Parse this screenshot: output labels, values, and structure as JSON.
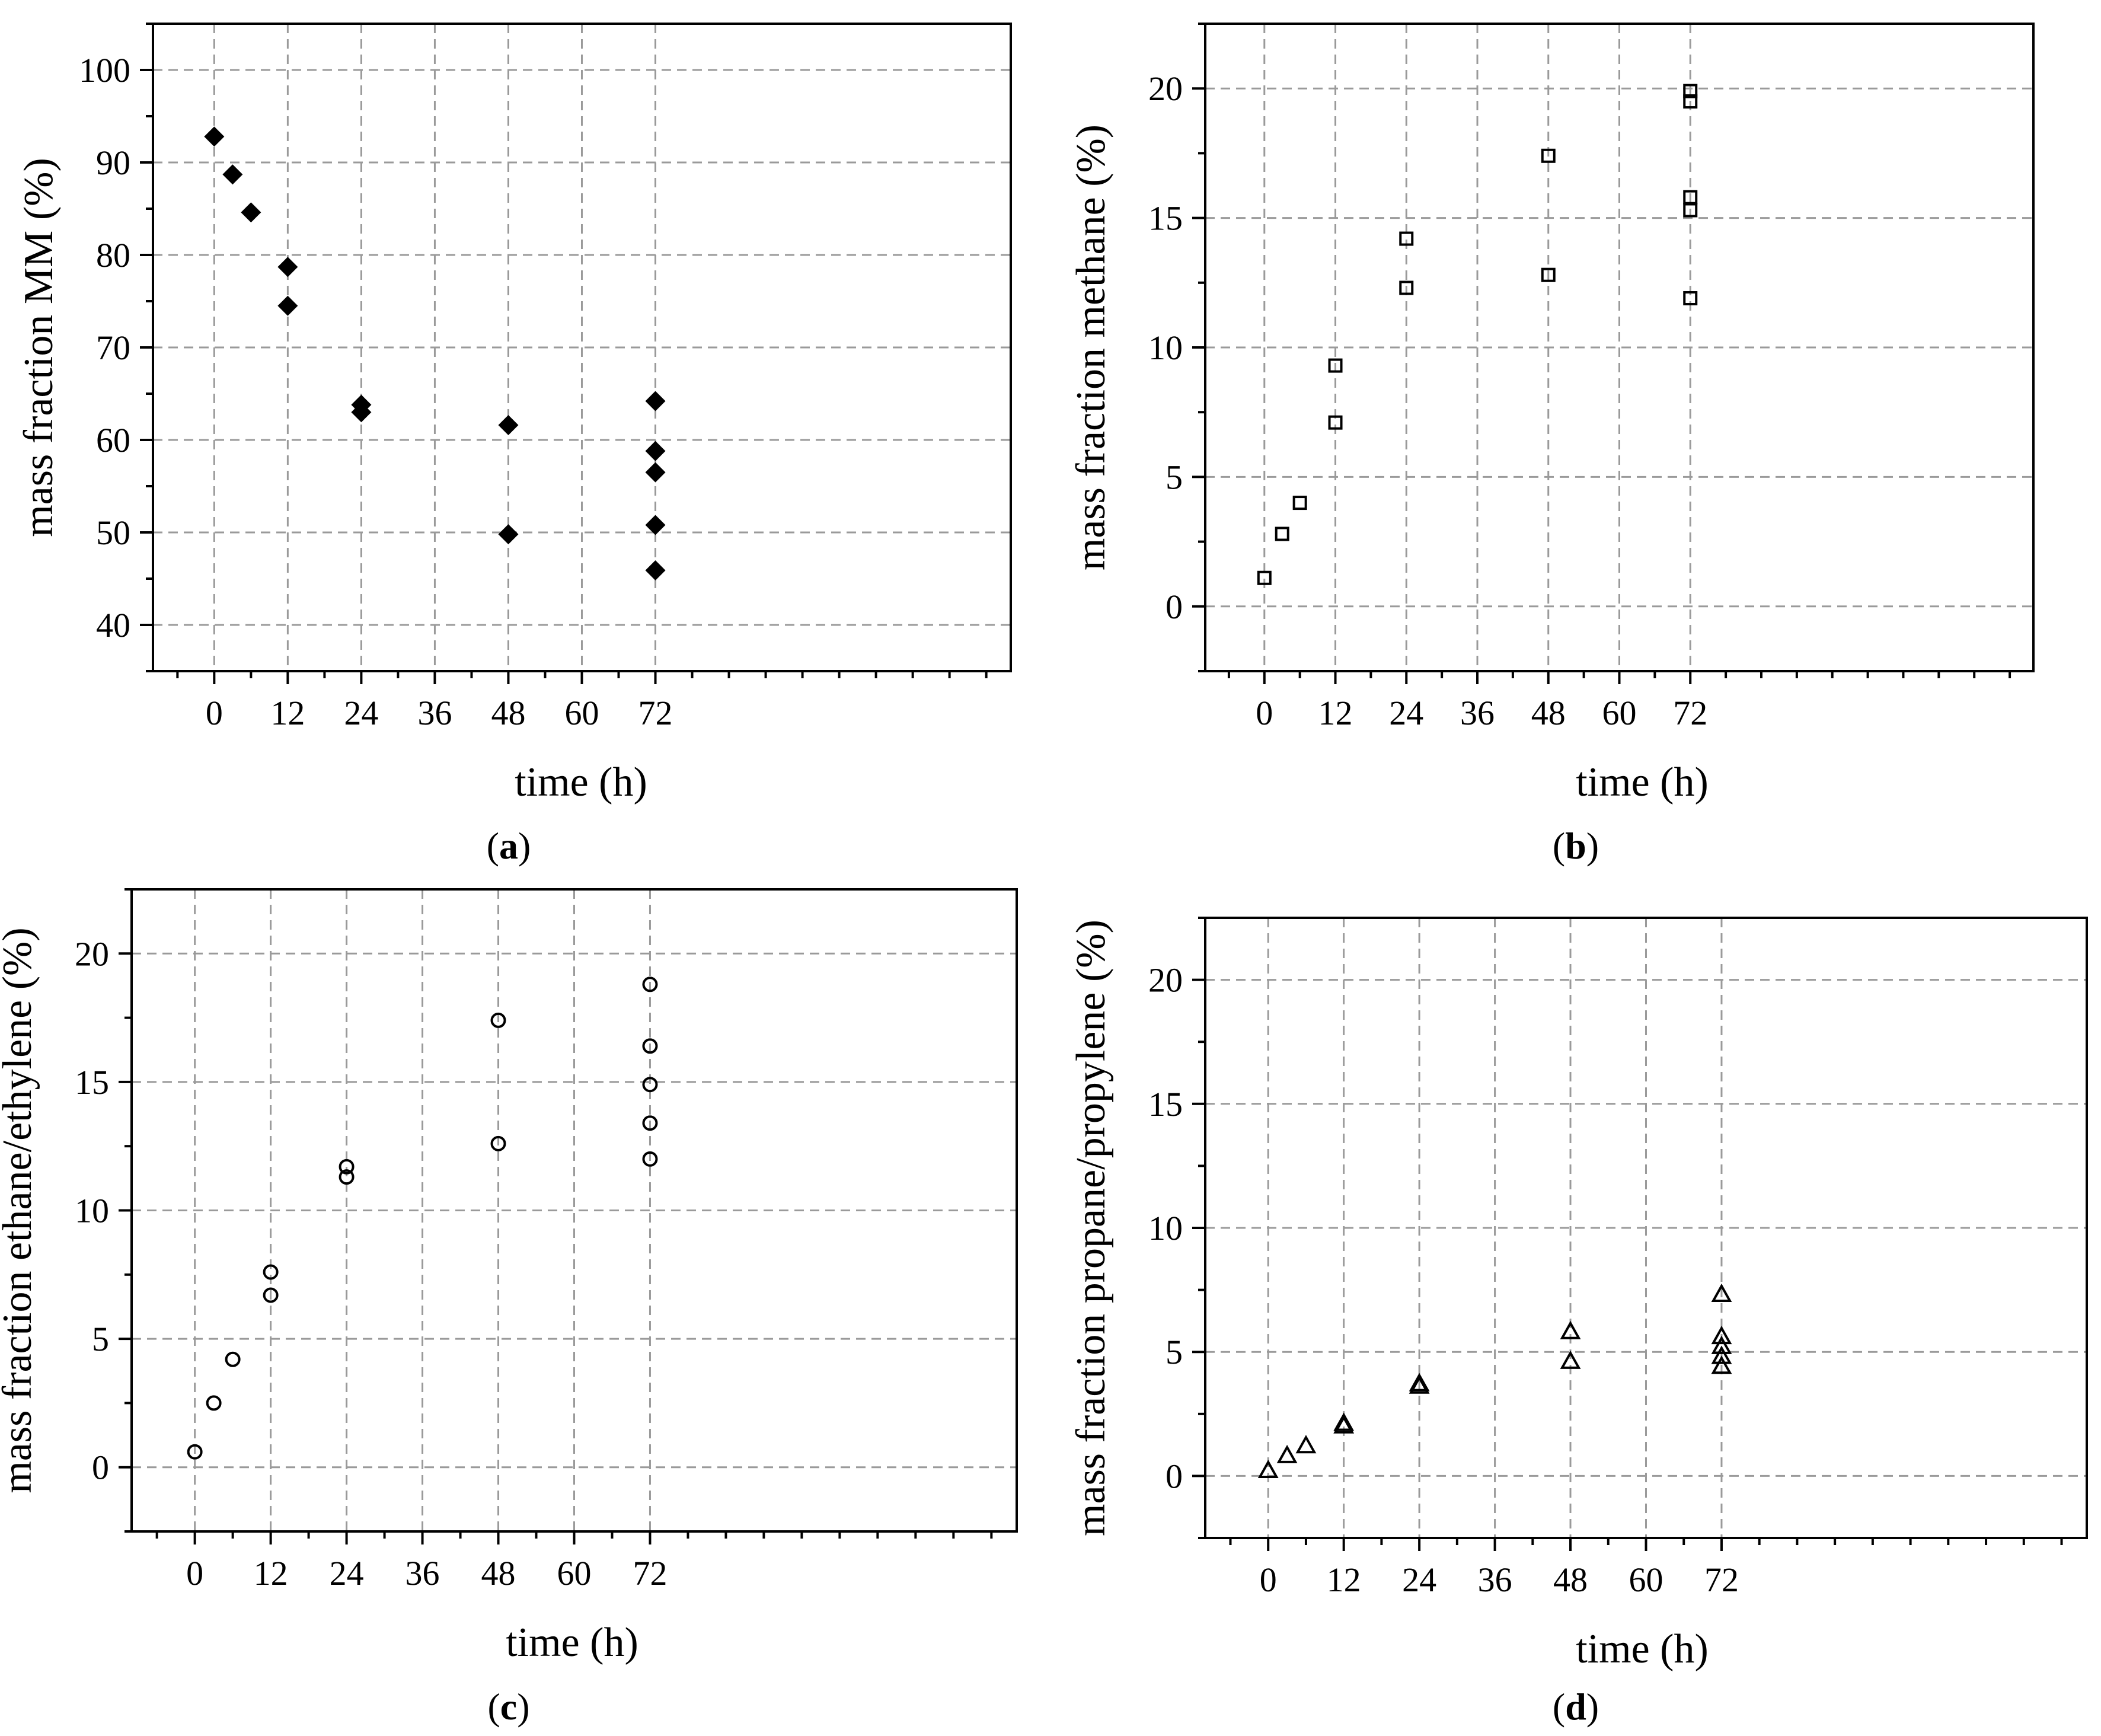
{
  "chart_data": [
    {
      "id": "a",
      "type": "scatter",
      "caption": "(a)",
      "xlabel": "time (h)",
      "ylabel": "mass fraction MM (%)",
      "xlim": [
        -10,
        130
      ],
      "ylim": [
        35,
        105
      ],
      "xticks": [
        0,
        12,
        24,
        36,
        48,
        60,
        72
      ],
      "yticks": [
        40,
        50,
        60,
        70,
        80,
        90,
        100
      ],
      "grid": true,
      "marker": "filled-diamond",
      "points": [
        {
          "x": 0,
          "y": 92.8
        },
        {
          "x": 3,
          "y": 88.7
        },
        {
          "x": 6,
          "y": 84.6
        },
        {
          "x": 12,
          "y": 78.7
        },
        {
          "x": 12,
          "y": 74.5
        },
        {
          "x": 24,
          "y": 63.8
        },
        {
          "x": 24,
          "y": 63.0
        },
        {
          "x": 48,
          "y": 61.6
        },
        {
          "x": 48,
          "y": 49.8
        },
        {
          "x": 72,
          "y": 64.2
        },
        {
          "x": 72,
          "y": 58.8
        },
        {
          "x": 72,
          "y": 56.5
        },
        {
          "x": 72,
          "y": 50.8
        },
        {
          "x": 72,
          "y": 45.9
        }
      ]
    },
    {
      "id": "b",
      "type": "scatter",
      "caption": "(b)",
      "xlabel": "time (h)",
      "ylabel": "mass fraction methane (%)",
      "xlim": [
        -10,
        130
      ],
      "ylim": [
        -2.5,
        22.5
      ],
      "xticks": [
        0,
        12,
        24,
        36,
        48,
        60,
        72
      ],
      "yticks": [
        0,
        5,
        10,
        15,
        20
      ],
      "grid": true,
      "marker": "open-square",
      "points": [
        {
          "x": 0,
          "y": 1.1
        },
        {
          "x": 3,
          "y": 2.8
        },
        {
          "x": 6,
          "y": 4.0
        },
        {
          "x": 12,
          "y": 9.3
        },
        {
          "x": 12,
          "y": 7.1
        },
        {
          "x": 24,
          "y": 14.2
        },
        {
          "x": 24,
          "y": 12.3
        },
        {
          "x": 48,
          "y": 17.4
        },
        {
          "x": 48,
          "y": 12.8
        },
        {
          "x": 72,
          "y": 19.9
        },
        {
          "x": 72,
          "y": 19.5
        },
        {
          "x": 72,
          "y": 15.8
        },
        {
          "x": 72,
          "y": 15.3
        },
        {
          "x": 72,
          "y": 11.9
        }
      ]
    },
    {
      "id": "c",
      "type": "scatter",
      "caption": "(c)",
      "xlabel": "time (h)",
      "ylabel": "mass fraction ethane/ethylene (%)",
      "xlim": [
        -10,
        130
      ],
      "ylim": [
        -2.5,
        22.5
      ],
      "xticks": [
        0,
        12,
        24,
        36,
        48,
        60,
        72
      ],
      "yticks": [
        0,
        5,
        10,
        15,
        20
      ],
      "grid": true,
      "marker": "open-circle",
      "points": [
        {
          "x": 0,
          "y": 0.6
        },
        {
          "x": 3,
          "y": 2.5
        },
        {
          "x": 6,
          "y": 4.2
        },
        {
          "x": 12,
          "y": 7.6
        },
        {
          "x": 12,
          "y": 6.7
        },
        {
          "x": 24,
          "y": 11.7
        },
        {
          "x": 24,
          "y": 11.3
        },
        {
          "x": 48,
          "y": 17.4
        },
        {
          "x": 48,
          "y": 12.6
        },
        {
          "x": 72,
          "y": 18.8
        },
        {
          "x": 72,
          "y": 16.4
        },
        {
          "x": 72,
          "y": 14.9
        },
        {
          "x": 72,
          "y": 13.4
        },
        {
          "x": 72,
          "y": 12.0
        }
      ]
    },
    {
      "id": "d",
      "type": "scatter",
      "caption": "(d)",
      "xlabel": "time (h)",
      "ylabel": "mass fraction propane/propylene (%)",
      "xlim": [
        -10,
        130
      ],
      "ylim": [
        -2.5,
        22.5
      ],
      "xticks": [
        0,
        12,
        24,
        36,
        48,
        60,
        72
      ],
      "yticks": [
        0,
        5,
        10,
        15,
        20
      ],
      "grid": true,
      "marker": "open-triangle",
      "points": [
        {
          "x": 0,
          "y": 0.2
        },
        {
          "x": 3,
          "y": 0.8
        },
        {
          "x": 6,
          "y": 1.2
        },
        {
          "x": 12,
          "y": 2.1
        },
        {
          "x": 12,
          "y": 2.0
        },
        {
          "x": 24,
          "y": 3.7
        },
        {
          "x": 24,
          "y": 3.6
        },
        {
          "x": 48,
          "y": 5.8
        },
        {
          "x": 48,
          "y": 4.6
        },
        {
          "x": 72,
          "y": 7.3
        },
        {
          "x": 72,
          "y": 5.6
        },
        {
          "x": 72,
          "y": 5.2
        },
        {
          "x": 72,
          "y": 4.8
        },
        {
          "x": 72,
          "y": 4.4
        }
      ]
    }
  ]
}
